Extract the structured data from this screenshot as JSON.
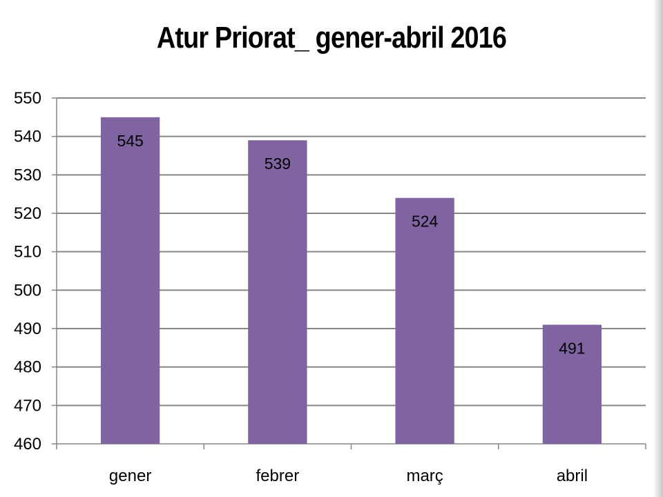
{
  "chart_data": {
    "type": "bar",
    "title": "Atur Priorat_ gener-abril 2016",
    "xlabel": "",
    "ylabel": "",
    "categories": [
      "gener",
      "febrer",
      "març",
      "abril"
    ],
    "values": [
      545,
      539,
      524,
      491
    ],
    "data_labels": [
      "545",
      "539",
      "524",
      "491"
    ],
    "ylim": [
      460,
      550
    ],
    "yticks": [
      460,
      470,
      480,
      490,
      500,
      510,
      520,
      530,
      540,
      550
    ],
    "grid": true,
    "legend": "none",
    "bar_color": "#8064A2",
    "grid_color": "#868686"
  }
}
